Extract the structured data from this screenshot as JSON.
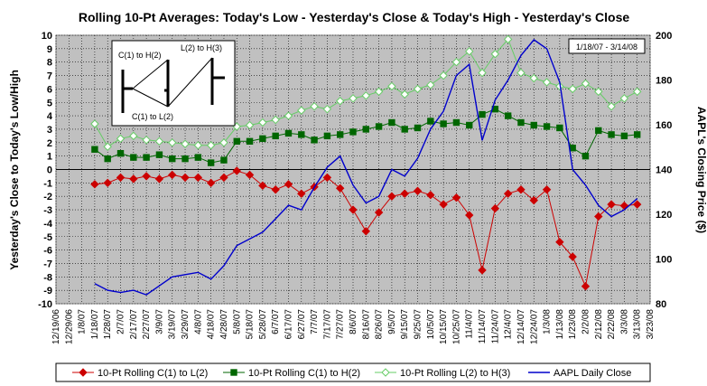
{
  "chart_data": {
    "type": "line",
    "title": "Rolling 10-Pt Averages:  Today's Low - Yesterday's Close & Today's High - Yesterday's Close",
    "ylabel": "Yesterday's Close to Today's Low/High",
    "y2label": "AAPL's Closing Price ($)",
    "date_range_label": "1/18/07 - 3/14/08",
    "ylim": [
      -10,
      10
    ],
    "y2lim": [
      80,
      200
    ],
    "yticks": [
      10,
      9,
      8,
      7,
      6,
      5,
      4,
      3,
      2,
      1,
      0,
      -1,
      -2,
      -3,
      -4,
      -5,
      -6,
      -7,
      -8,
      -9,
      -10
    ],
    "y2ticks": [
      200,
      180,
      160,
      140,
      120,
      100,
      80
    ],
    "categories": [
      "12/19/06",
      "12/29/06",
      "1/8/07",
      "1/18/07",
      "1/28/07",
      "2/7/07",
      "2/17/07",
      "2/27/07",
      "3/9/07",
      "3/19/07",
      "3/29/07",
      "4/8/07",
      "4/18/07",
      "4/28/07",
      "5/8/07",
      "5/18/07",
      "5/28/07",
      "6/7/07",
      "6/17/07",
      "6/27/07",
      "7/7/07",
      "7/17/07",
      "7/27/07",
      "8/6/07",
      "8/16/07",
      "8/26/07",
      "9/5/07",
      "9/15/07",
      "9/25/07",
      "10/5/07",
      "10/15/07",
      "10/25/07",
      "11/4/07",
      "11/14/07",
      "11/24/07",
      "12/4/07",
      "12/14/07",
      "12/24/07",
      "1/3/08",
      "1/13/08",
      "1/23/08",
      "2/2/08",
      "2/12/08",
      "2/22/08",
      "3/3/08",
      "3/13/08",
      "3/23/08"
    ],
    "grid": true,
    "legend_position": "bottom",
    "inset_diagram": {
      "label_c1_h2": "C(1) to H(2)",
      "label_l2_h3": "L(2) to H(3)",
      "label_c1_l2": "C(1) to L(2)"
    },
    "series": [
      {
        "name": "10-Pt Rolling C(1) to L(2)",
        "color": "#cc0000",
        "marker": "diamond",
        "axis": "left",
        "points": [
          [
            "1/18/07",
            -1.1
          ],
          [
            "1/28/07",
            -1.0
          ],
          [
            "2/7/07",
            -0.6
          ],
          [
            "2/17/07",
            -0.7
          ],
          [
            "2/27/07",
            -0.5
          ],
          [
            "3/9/07",
            -0.7
          ],
          [
            "3/19/07",
            -0.4
          ],
          [
            "3/29/07",
            -0.6
          ],
          [
            "4/8/07",
            -0.6
          ],
          [
            "4/18/07",
            -1.0
          ],
          [
            "4/28/07",
            -0.6
          ],
          [
            "5/8/07",
            -0.1
          ],
          [
            "5/18/07",
            -0.4
          ],
          [
            "5/28/07",
            -1.2
          ],
          [
            "6/7/07",
            -1.5
          ],
          [
            "6/17/07",
            -1.1
          ],
          [
            "6/27/07",
            -1.8
          ],
          [
            "7/7/07",
            -1.3
          ],
          [
            "7/17/07",
            -0.6
          ],
          [
            "7/27/07",
            -1.4
          ],
          [
            "8/6/07",
            -3.0
          ],
          [
            "8/16/07",
            -4.6
          ],
          [
            "8/26/07",
            -3.2
          ],
          [
            "9/5/07",
            -2.0
          ],
          [
            "9/15/07",
            -1.8
          ],
          [
            "9/25/07",
            -1.6
          ],
          [
            "10/5/07",
            -1.9
          ],
          [
            "10/15/07",
            -2.6
          ],
          [
            "10/25/07",
            -2.1
          ],
          [
            "11/4/07",
            -3.4
          ],
          [
            "11/14/07",
            -7.5
          ],
          [
            "11/24/07",
            -2.9
          ],
          [
            "12/4/07",
            -1.8
          ],
          [
            "12/14/07",
            -1.5
          ],
          [
            "12/24/07",
            -2.3
          ],
          [
            "1/3/08",
            -1.5
          ],
          [
            "1/13/08",
            -5.4
          ],
          [
            "1/23/08",
            -6.5
          ],
          [
            "2/2/08",
            -8.7
          ],
          [
            "2/12/08",
            -3.5
          ],
          [
            "2/22/08",
            -2.6
          ],
          [
            "3/3/08",
            -2.7
          ],
          [
            "3/13/08",
            -2.6
          ]
        ]
      },
      {
        "name": "10-Pt Rolling C(1) to H(2)",
        "color": "#006600",
        "marker": "square",
        "axis": "left",
        "points": [
          [
            "1/18/07",
            1.5
          ],
          [
            "1/28/07",
            0.8
          ],
          [
            "2/7/07",
            1.2
          ],
          [
            "2/17/07",
            0.9
          ],
          [
            "2/27/07",
            0.9
          ],
          [
            "3/9/07",
            1.1
          ],
          [
            "3/19/07",
            0.8
          ],
          [
            "3/29/07",
            0.8
          ],
          [
            "4/8/07",
            0.9
          ],
          [
            "4/18/07",
            0.5
          ],
          [
            "4/28/07",
            0.7
          ],
          [
            "5/8/07",
            2.1
          ],
          [
            "5/18/07",
            2.1
          ],
          [
            "5/28/07",
            2.3
          ],
          [
            "6/7/07",
            2.5
          ],
          [
            "6/17/07",
            2.7
          ],
          [
            "6/27/07",
            2.6
          ],
          [
            "7/7/07",
            2.2
          ],
          [
            "7/17/07",
            2.5
          ],
          [
            "7/27/07",
            2.6
          ],
          [
            "8/6/07",
            2.8
          ],
          [
            "8/16/07",
            3.0
          ],
          [
            "8/26/07",
            3.2
          ],
          [
            "9/5/07",
            3.5
          ],
          [
            "9/15/07",
            3.0
          ],
          [
            "9/25/07",
            3.1
          ],
          [
            "10/5/07",
            3.6
          ],
          [
            "10/15/07",
            3.4
          ],
          [
            "10/25/07",
            3.5
          ],
          [
            "11/4/07",
            3.3
          ],
          [
            "11/14/07",
            4.1
          ],
          [
            "11/24/07",
            4.5
          ],
          [
            "12/4/07",
            4.0
          ],
          [
            "12/14/07",
            3.5
          ],
          [
            "12/24/07",
            3.3
          ],
          [
            "1/3/08",
            3.2
          ],
          [
            "1/13/08",
            3.1
          ],
          [
            "1/23/08",
            1.6
          ],
          [
            "2/2/08",
            1.0
          ],
          [
            "2/12/08",
            2.9
          ],
          [
            "2/22/08",
            2.6
          ],
          [
            "3/3/08",
            2.5
          ],
          [
            "3/13/08",
            2.6
          ]
        ]
      },
      {
        "name": "10-Pt Rolling L(2) to H(3)",
        "color": "#66cc66",
        "marker": "open-diamond",
        "axis": "left",
        "points": [
          [
            "1/18/07",
            3.4
          ],
          [
            "1/28/07",
            1.7
          ],
          [
            "2/7/07",
            2.3
          ],
          [
            "2/17/07",
            2.5
          ],
          [
            "2/27/07",
            2.2
          ],
          [
            "3/9/07",
            2.1
          ],
          [
            "3/19/07",
            2.0
          ],
          [
            "3/29/07",
            1.9
          ],
          [
            "4/8/07",
            1.8
          ],
          [
            "4/18/07",
            1.8
          ],
          [
            "4/28/07",
            2.0
          ],
          [
            "5/8/07",
            3.2
          ],
          [
            "5/18/07",
            3.3
          ],
          [
            "5/28/07",
            3.5
          ],
          [
            "6/7/07",
            3.7
          ],
          [
            "6/17/07",
            4.0
          ],
          [
            "6/27/07",
            4.4
          ],
          [
            "7/7/07",
            4.7
          ],
          [
            "7/17/07",
            4.5
          ],
          [
            "7/27/07",
            5.1
          ],
          [
            "8/6/07",
            5.3
          ],
          [
            "8/16/07",
            5.5
          ],
          [
            "8/26/07",
            5.8
          ],
          [
            "9/5/07",
            6.2
          ],
          [
            "9/15/07",
            5.6
          ],
          [
            "9/25/07",
            6.0
          ],
          [
            "10/5/07",
            6.3
          ],
          [
            "10/15/07",
            7.0
          ],
          [
            "10/25/07",
            8.0
          ],
          [
            "11/4/07",
            8.8
          ],
          [
            "11/14/07",
            7.2
          ],
          [
            "11/24/07",
            8.6
          ],
          [
            "12/4/07",
            9.7
          ],
          [
            "12/14/07",
            7.2
          ],
          [
            "12/24/07",
            6.8
          ],
          [
            "1/3/08",
            6.5
          ],
          [
            "1/13/08",
            6.2
          ],
          [
            "1/23/08",
            6.0
          ],
          [
            "2/2/08",
            6.4
          ],
          [
            "2/12/08",
            5.8
          ],
          [
            "2/22/08",
            4.7
          ],
          [
            "3/3/08",
            5.3
          ],
          [
            "3/13/08",
            5.8
          ]
        ]
      },
      {
        "name": "AAPL Daily Close",
        "color": "#0000cc",
        "marker": "none",
        "axis": "right",
        "points": [
          [
            "1/18/07",
            89
          ],
          [
            "1/28/07",
            86
          ],
          [
            "2/7/07",
            85
          ],
          [
            "2/17/07",
            86
          ],
          [
            "2/27/07",
            84
          ],
          [
            "3/9/07",
            88
          ],
          [
            "3/19/07",
            92
          ],
          [
            "3/29/07",
            93
          ],
          [
            "4/8/07",
            94
          ],
          [
            "4/18/07",
            91
          ],
          [
            "4/28/07",
            97
          ],
          [
            "5/8/07",
            106
          ],
          [
            "5/18/07",
            109
          ],
          [
            "5/28/07",
            112
          ],
          [
            "6/7/07",
            118
          ],
          [
            "6/17/07",
            124
          ],
          [
            "6/27/07",
            122
          ],
          [
            "7/7/07",
            132
          ],
          [
            "7/17/07",
            141
          ],
          [
            "7/27/07",
            146
          ],
          [
            "8/6/07",
            133
          ],
          [
            "8/16/07",
            125
          ],
          [
            "8/26/07",
            128
          ],
          [
            "9/5/07",
            140
          ],
          [
            "9/15/07",
            137
          ],
          [
            "9/25/07",
            145
          ],
          [
            "10/5/07",
            158
          ],
          [
            "10/15/07",
            166
          ],
          [
            "10/25/07",
            182
          ],
          [
            "11/4/07",
            187
          ],
          [
            "11/14/07",
            153
          ],
          [
            "11/24/07",
            171
          ],
          [
            "12/4/07",
            180
          ],
          [
            "12/14/07",
            191
          ],
          [
            "12/24/07",
            198
          ],
          [
            "1/3/08",
            194
          ],
          [
            "1/13/08",
            179
          ],
          [
            "1/23/08",
            140
          ],
          [
            "2/2/08",
            133
          ],
          [
            "2/12/08",
            124
          ],
          [
            "2/22/08",
            119
          ],
          [
            "3/3/08",
            122
          ],
          [
            "3/13/08",
            127
          ]
        ]
      }
    ]
  }
}
